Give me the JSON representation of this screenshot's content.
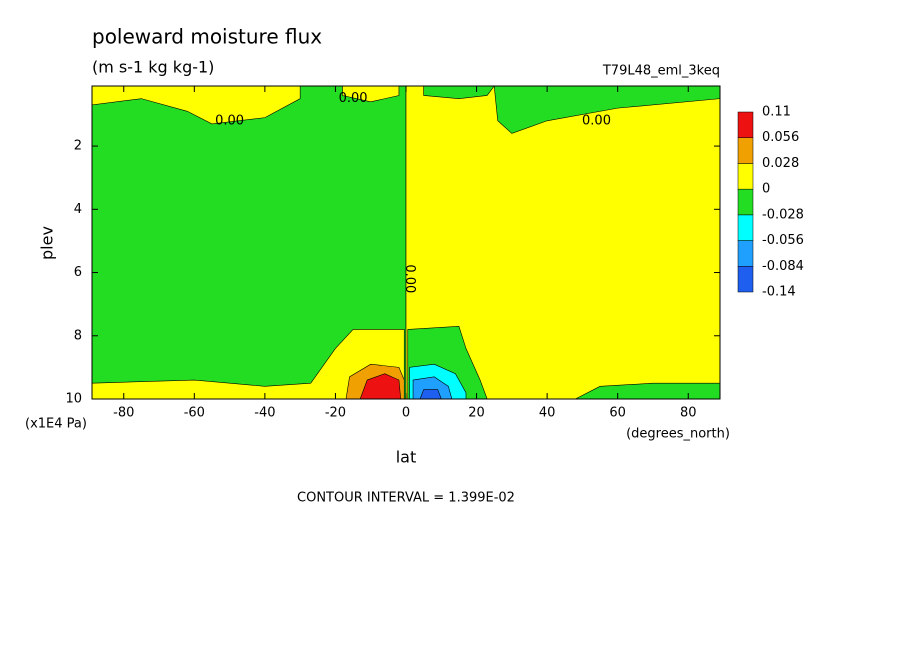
{
  "chart_data": {
    "type": "contour",
    "title": "poleward moisture flux",
    "subtitle": "(m s-1 kg kg-1)",
    "dataset": "T79L48_eml_3keq",
    "x_label": "lat",
    "x_units": "(degrees_north)",
    "y_label": "plev",
    "y_units": "(x1E4 Pa)",
    "xlim": [
      -89,
      89
    ],
    "xticks": [
      -80,
      -60,
      -40,
      -20,
      0,
      20,
      40,
      60,
      80
    ],
    "ylim": [
      10,
      0.1
    ],
    "yticks": [
      2,
      4,
      6,
      8,
      10
    ],
    "colorbar": {
      "levels": [
        -0.14,
        -0.084,
        -0.056,
        -0.028,
        0,
        0.028,
        0.056,
        0.11
      ],
      "colors": [
        "#1f5ff0",
        "#1fa0ff",
        "#00ffff",
        "#22dd22",
        "#ffff00",
        "#f0a000",
        "#ee1111"
      ]
    },
    "contour_labels": [
      "0.00",
      "0.00",
      "0.00",
      "0.00"
    ],
    "footer": "CONTOUR INTERVAL = 1.399E-02"
  }
}
